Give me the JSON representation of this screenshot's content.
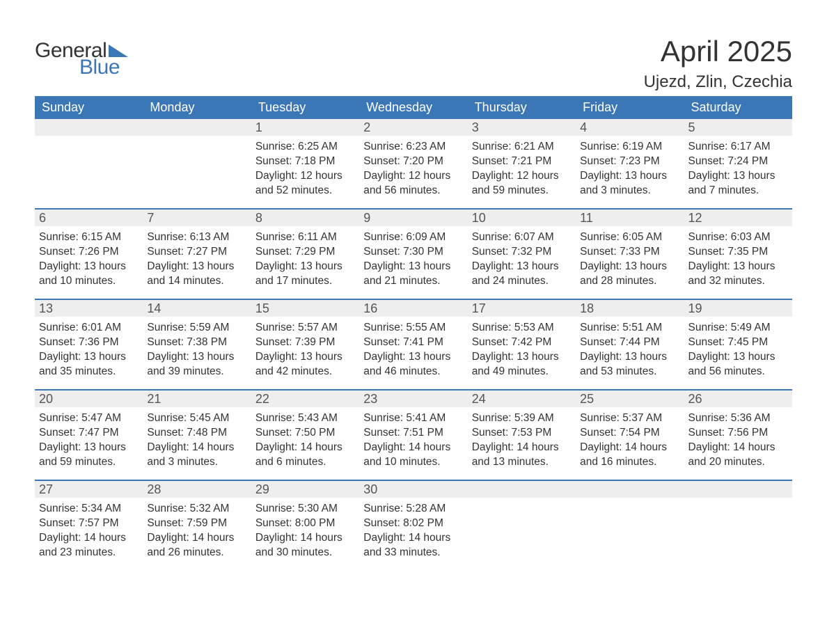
{
  "brand": {
    "word1": "General",
    "word2": "Blue",
    "accent_color": "#3b77b7"
  },
  "title": "April 2025",
  "location": "Ujezd, Zlin, Czechia",
  "colors": {
    "header_bg": "#3b77b7",
    "header_text": "#ffffff",
    "daynum_bg": "#eeeeee",
    "week_divider": "#3b77b7",
    "body_text": "#333333",
    "page_bg": "#ffffff"
  },
  "weekdays": [
    "Sunday",
    "Monday",
    "Tuesday",
    "Wednesday",
    "Thursday",
    "Friday",
    "Saturday"
  ],
  "weeks": [
    [
      null,
      null,
      {
        "n": "1",
        "sunrise": "6:25 AM",
        "sunset": "7:18 PM",
        "daylight": "12 hours and 52 minutes."
      },
      {
        "n": "2",
        "sunrise": "6:23 AM",
        "sunset": "7:20 PM",
        "daylight": "12 hours and 56 minutes."
      },
      {
        "n": "3",
        "sunrise": "6:21 AM",
        "sunset": "7:21 PM",
        "daylight": "12 hours and 59 minutes."
      },
      {
        "n": "4",
        "sunrise": "6:19 AM",
        "sunset": "7:23 PM",
        "daylight": "13 hours and 3 minutes."
      },
      {
        "n": "5",
        "sunrise": "6:17 AM",
        "sunset": "7:24 PM",
        "daylight": "13 hours and 7 minutes."
      }
    ],
    [
      {
        "n": "6",
        "sunrise": "6:15 AM",
        "sunset": "7:26 PM",
        "daylight": "13 hours and 10 minutes."
      },
      {
        "n": "7",
        "sunrise": "6:13 AM",
        "sunset": "7:27 PM",
        "daylight": "13 hours and 14 minutes."
      },
      {
        "n": "8",
        "sunrise": "6:11 AM",
        "sunset": "7:29 PM",
        "daylight": "13 hours and 17 minutes."
      },
      {
        "n": "9",
        "sunrise": "6:09 AM",
        "sunset": "7:30 PM",
        "daylight": "13 hours and 21 minutes."
      },
      {
        "n": "10",
        "sunrise": "6:07 AM",
        "sunset": "7:32 PM",
        "daylight": "13 hours and 24 minutes."
      },
      {
        "n": "11",
        "sunrise": "6:05 AM",
        "sunset": "7:33 PM",
        "daylight": "13 hours and 28 minutes."
      },
      {
        "n": "12",
        "sunrise": "6:03 AM",
        "sunset": "7:35 PM",
        "daylight": "13 hours and 32 minutes."
      }
    ],
    [
      {
        "n": "13",
        "sunrise": "6:01 AM",
        "sunset": "7:36 PM",
        "daylight": "13 hours and 35 minutes."
      },
      {
        "n": "14",
        "sunrise": "5:59 AM",
        "sunset": "7:38 PM",
        "daylight": "13 hours and 39 minutes."
      },
      {
        "n": "15",
        "sunrise": "5:57 AM",
        "sunset": "7:39 PM",
        "daylight": "13 hours and 42 minutes."
      },
      {
        "n": "16",
        "sunrise": "5:55 AM",
        "sunset": "7:41 PM",
        "daylight": "13 hours and 46 minutes."
      },
      {
        "n": "17",
        "sunrise": "5:53 AM",
        "sunset": "7:42 PM",
        "daylight": "13 hours and 49 minutes."
      },
      {
        "n": "18",
        "sunrise": "5:51 AM",
        "sunset": "7:44 PM",
        "daylight": "13 hours and 53 minutes."
      },
      {
        "n": "19",
        "sunrise": "5:49 AM",
        "sunset": "7:45 PM",
        "daylight": "13 hours and 56 minutes."
      }
    ],
    [
      {
        "n": "20",
        "sunrise": "5:47 AM",
        "sunset": "7:47 PM",
        "daylight": "13 hours and 59 minutes."
      },
      {
        "n": "21",
        "sunrise": "5:45 AM",
        "sunset": "7:48 PM",
        "daylight": "14 hours and 3 minutes."
      },
      {
        "n": "22",
        "sunrise": "5:43 AM",
        "sunset": "7:50 PM",
        "daylight": "14 hours and 6 minutes."
      },
      {
        "n": "23",
        "sunrise": "5:41 AM",
        "sunset": "7:51 PM",
        "daylight": "14 hours and 10 minutes."
      },
      {
        "n": "24",
        "sunrise": "5:39 AM",
        "sunset": "7:53 PM",
        "daylight": "14 hours and 13 minutes."
      },
      {
        "n": "25",
        "sunrise": "5:37 AM",
        "sunset": "7:54 PM",
        "daylight": "14 hours and 16 minutes."
      },
      {
        "n": "26",
        "sunrise": "5:36 AM",
        "sunset": "7:56 PM",
        "daylight": "14 hours and 20 minutes."
      }
    ],
    [
      {
        "n": "27",
        "sunrise": "5:34 AM",
        "sunset": "7:57 PM",
        "daylight": "14 hours and 23 minutes."
      },
      {
        "n": "28",
        "sunrise": "5:32 AM",
        "sunset": "7:59 PM",
        "daylight": "14 hours and 26 minutes."
      },
      {
        "n": "29",
        "sunrise": "5:30 AM",
        "sunset": "8:00 PM",
        "daylight": "14 hours and 30 minutes."
      },
      {
        "n": "30",
        "sunrise": "5:28 AM",
        "sunset": "8:02 PM",
        "daylight": "14 hours and 33 minutes."
      },
      null,
      null,
      null
    ]
  ],
  "labels": {
    "sunrise": "Sunrise: ",
    "sunset": "Sunset: ",
    "daylight": "Daylight: "
  }
}
